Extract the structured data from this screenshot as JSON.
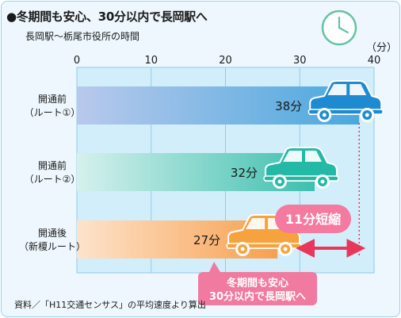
{
  "title": "●冬期間も安心、30分以内で長岡駅へ",
  "subtitle": "長岡駅～栃尾市役所の時間",
  "source_note": "資料／「H11交通センサス」の平均速度より算出",
  "colors": {
    "panel_bg": "#edf7fd",
    "plot_bg": "#d2eefb",
    "grid": "#8fcbe8",
    "bar1_start": "#b9c9ec",
    "bar1_end": "#4aa8de",
    "bar2_start": "#d6f1ec",
    "bar2_end": "#3dbfaf",
    "bar3_start": "#fde3cc",
    "bar3_end": "#f7a04f",
    "car1": "#1e8bd0",
    "car2": "#24b8a6",
    "car3": "#f6a33f",
    "arrow": "#e8375a",
    "badge": "#f47aa0",
    "callout": "#f07aa0",
    "guide": "#e8375a"
  },
  "chart_data": {
    "type": "bar",
    "orientation": "horizontal",
    "unit_label": "（分）",
    "xlim": [
      0,
      40
    ],
    "xticks": [
      "0",
      "10",
      "20",
      "30",
      "40"
    ],
    "grid": true,
    "categories": [
      [
        "開通前",
        "（ルート①）"
      ],
      [
        "開通前",
        "（ルート②）"
      ],
      [
        "開通後",
        "（新榎ルート）"
      ]
    ],
    "values": [
      38,
      32,
      27
    ],
    "value_labels": [
      "38分",
      "32分",
      "27分"
    ],
    "icons": [
      "car-icon",
      "car-icon",
      "car-icon",
      "clock-icon"
    ],
    "annotations": {
      "reduction_label": "11分短縮",
      "reduction_from": 27,
      "reduction_to": 38,
      "callout_lines": [
        "冬期間も安心",
        "30分以内で長岡駅へ"
      ]
    }
  }
}
